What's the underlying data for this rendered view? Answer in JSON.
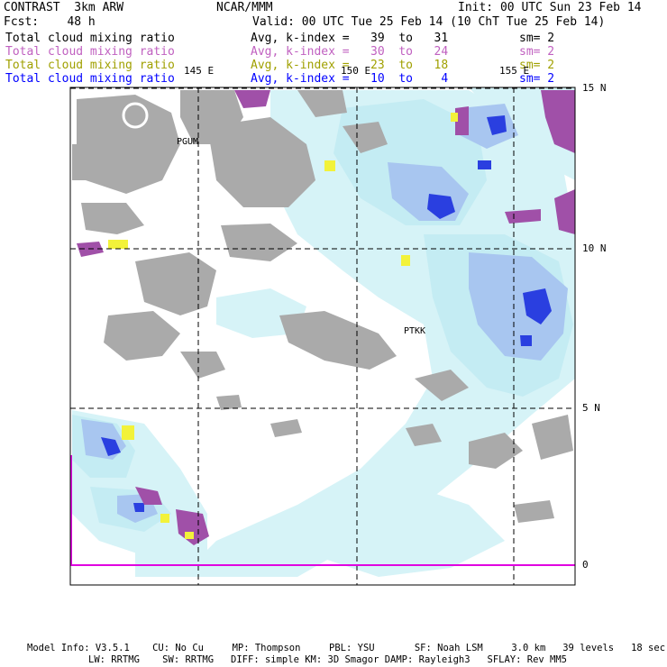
{
  "header": {
    "left1": "CONTRAST  3km ARW",
    "center1": "NCAR/MMM",
    "right1": "Init: 00 UTC Sun 23 Feb 14",
    "left2": "Fcst:    48 h",
    "center2": "Valid: 00 UTC Tue 25 Feb 14 (10 ChT Tue 25 Feb 14)"
  },
  "legend": [
    {
      "field": "Total cloud mixing ratio",
      "range": "Avg, k-index =   39  to   31",
      "sm": "sm= 2",
      "color": "#000000"
    },
    {
      "field": "Total cloud mixing ratio",
      "range": "Avg, k-index =   30  to   24",
      "sm": "sm= 2",
      "color": "#c060c0"
    },
    {
      "field": "Total cloud mixing ratio",
      "range": "Avg, k-index =   23  to   18",
      "sm": "sm= 2",
      "color": "#a0a000"
    },
    {
      "field": "Total cloud mixing ratio",
      "range": "Avg, k-index =   10  to    4",
      "sm": "sm= 2",
      "color": "#0000ff"
    }
  ],
  "axes": {
    "lon_labels": [
      "145 E",
      "150 E",
      "155 E"
    ],
    "lat_labels": [
      "15 N",
      "10 N",
      "5 N",
      "0"
    ]
  },
  "stations": [
    "PGUM",
    "PTKK"
  ],
  "footer": {
    "line1": "Model Info: V3.5.1    CU: No Cu     MP: Thompson     PBL: YSU       SF: Noah LSM     3.0 km   39 levels   18 sec",
    "line2": "LW: RRTMG    SW: RRTMG   DIFF: simple KM: 3D Smagor DAMP: Rayleigh3   SFLAY: Rev MM5"
  }
}
